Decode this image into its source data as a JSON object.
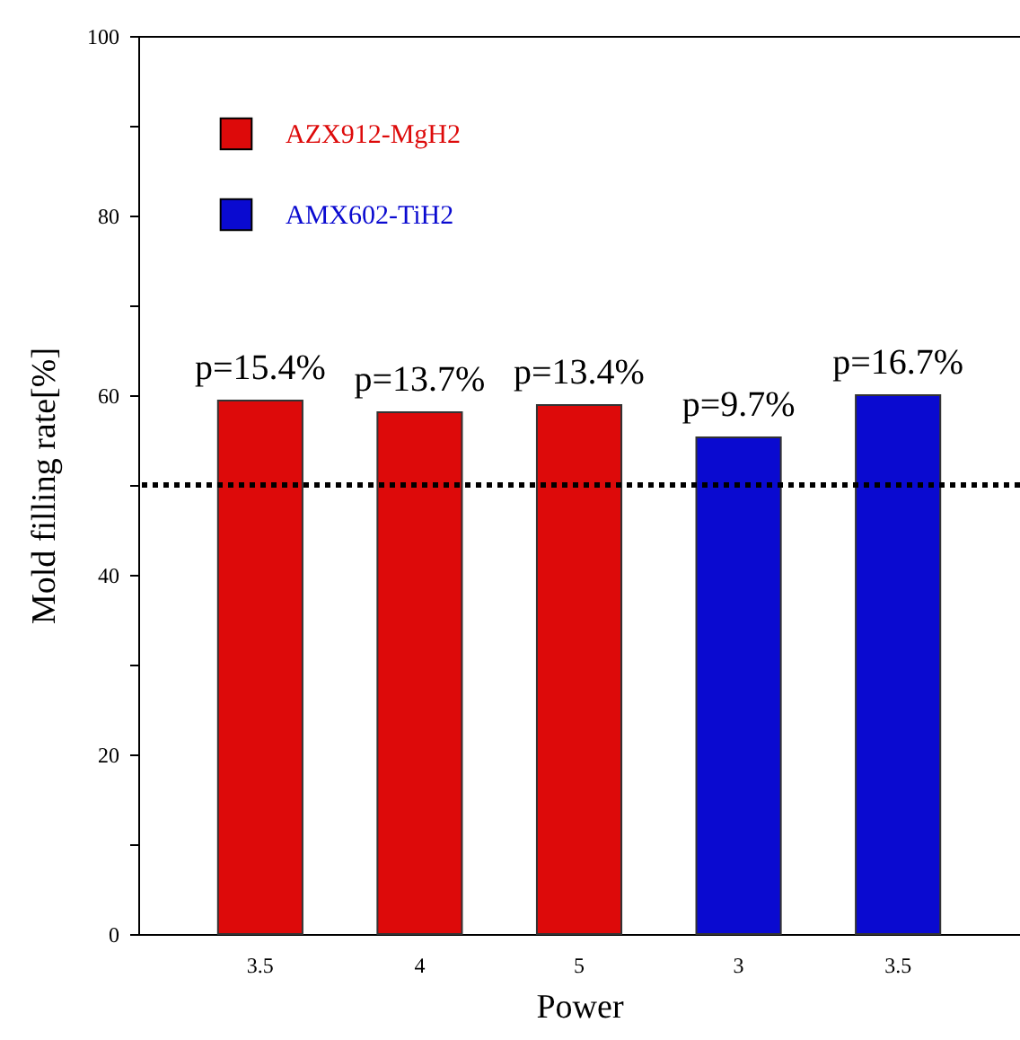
{
  "chart_data": {
    "type": "bar",
    "xlabel": "Power",
    "ylabel": "Mold filling rate[%]",
    "categories": [
      "3.5",
      "4",
      "5",
      "3",
      "3.5"
    ],
    "series": [
      {
        "name": "AZX912-MgH2",
        "color": "#dd0a0a",
        "values": [
          59.4,
          58.1,
          58.9,
          null,
          null
        ]
      },
      {
        "name": "AMX602-TiH2",
        "color": "#0a0ad0",
        "values": [
          null,
          null,
          null,
          55.3,
          60.0
        ]
      }
    ],
    "ylim": [
      0,
      100
    ],
    "yticks": [
      0,
      {
        "value": 10,
        "label": null
      },
      20,
      {
        "value": 30,
        "label": null
      },
      40,
      {
        "value": 50,
        "label": null
      },
      60,
      {
        "value": 70,
        "label": null
      },
      80,
      {
        "value": 90,
        "label": null
      },
      100
    ],
    "ref_lines": [
      {
        "axis": "y",
        "value": 50,
        "color": "#000000",
        "line_style": "dotted"
      }
    ],
    "annotations": [
      "p=15.4%",
      "p=13.7%",
      "p=13.4%",
      "p=9.7%",
      "p=16.7%"
    ],
    "legend": "top left",
    "grid": false
  }
}
